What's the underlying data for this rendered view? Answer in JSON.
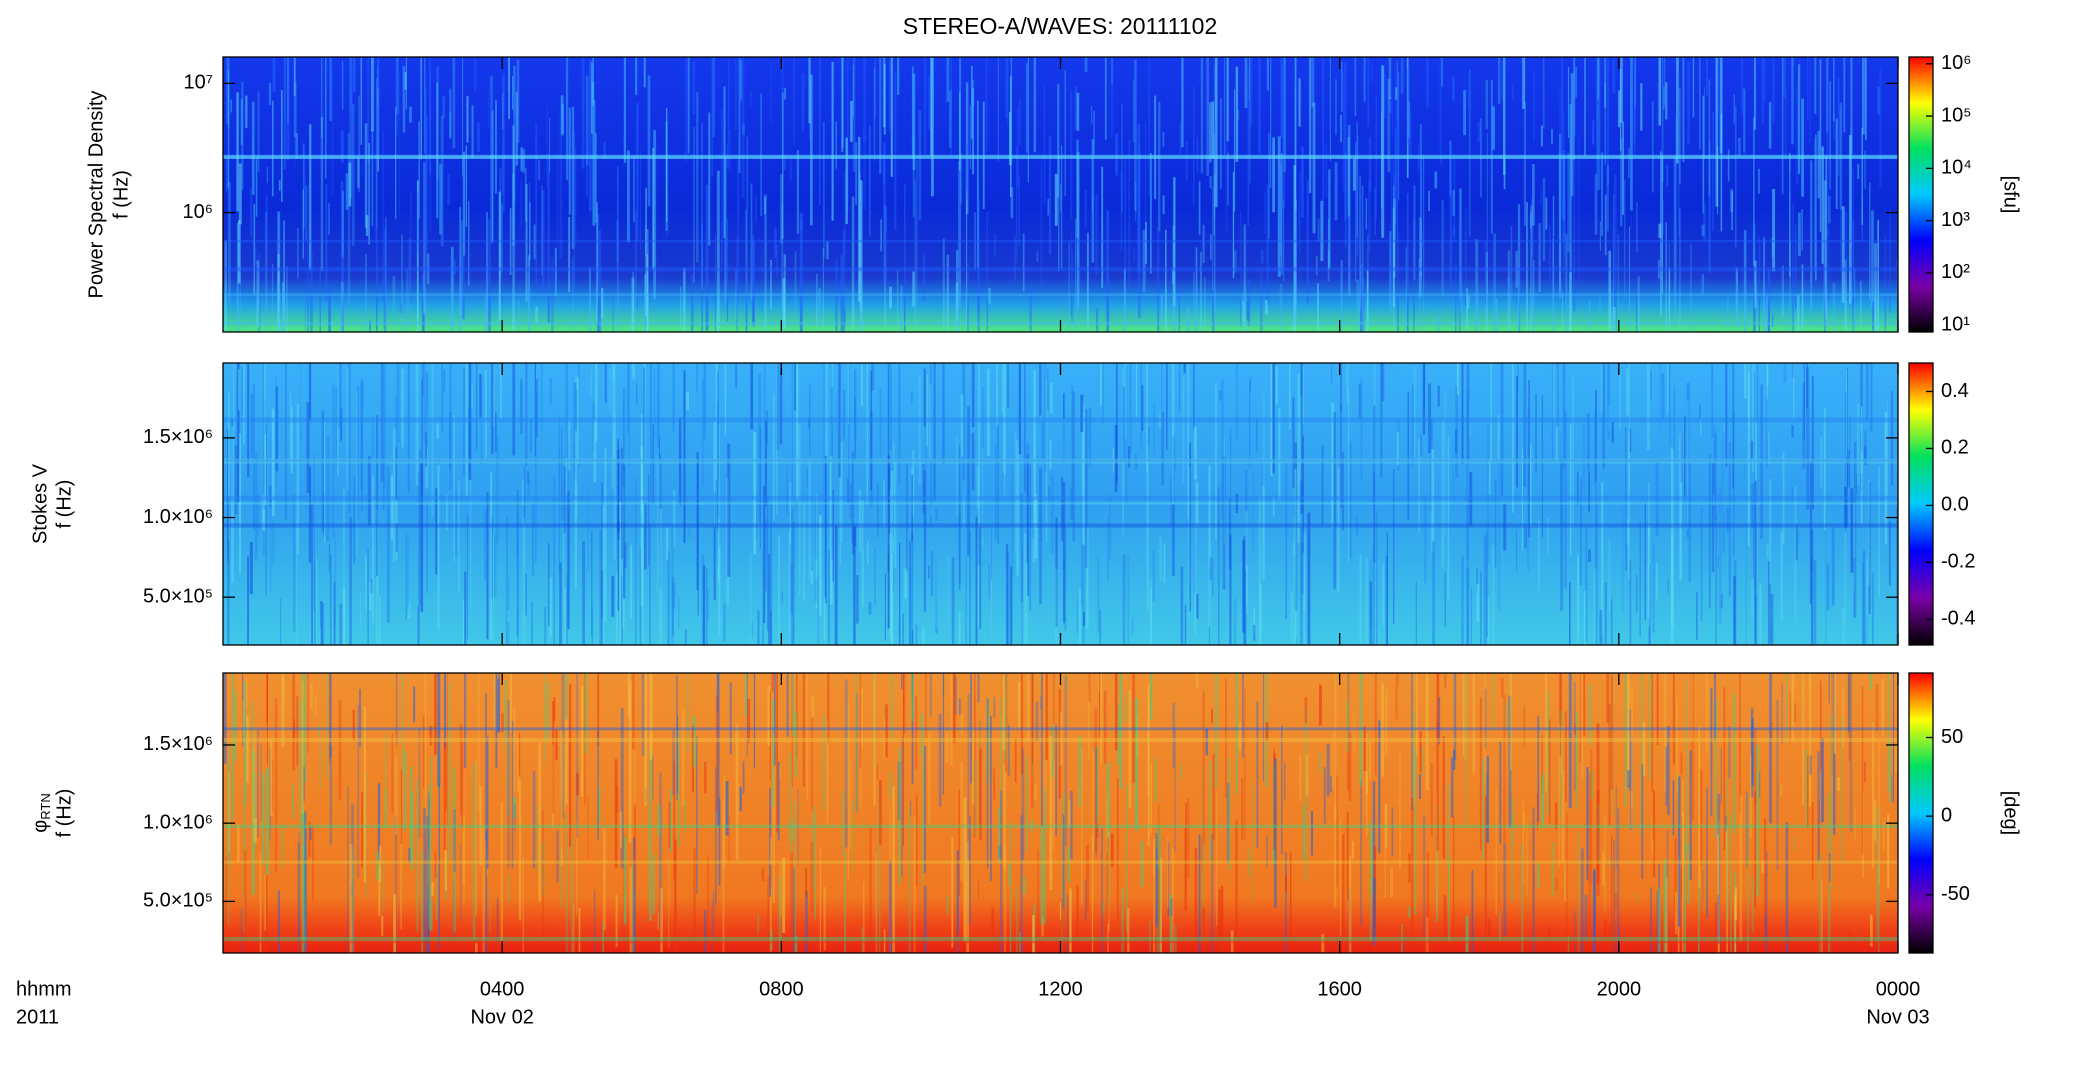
{
  "chart_data": [
    {
      "type": "heatmap",
      "title": "STEREO-A/WAVES: 20111102",
      "ylabel": [
        "Power Spectral Density",
        "f (Hz)"
      ],
      "ylog": true,
      "xlim": [
        0,
        24
      ],
      "ylim": [
        119000,
        16000000
      ],
      "yticks": [
        {
          "value": 1000000,
          "label": "10⁶"
        },
        {
          "value": 10000000,
          "label": "10⁷"
        }
      ],
      "colormap": [
        "#000000",
        "#7a00a8",
        "#0000ff",
        "#00c8ff",
        "#00e060",
        "#ffff00",
        "#ff0000"
      ],
      "colorbar": {
        "log": true,
        "lim": [
          7.4,
          1350000
        ],
        "label": "[sfu]",
        "ticks": [
          {
            "value": 10,
            "label": "10¹"
          },
          {
            "value": 100,
            "label": "10²"
          },
          {
            "value": 1000,
            "label": "10³"
          },
          {
            "value": 10000,
            "label": "10⁴"
          },
          {
            "value": 100000,
            "label": "10⁵"
          },
          {
            "value": 1000000,
            "label": "10⁶"
          }
        ]
      }
    },
    {
      "type": "heatmap",
      "ylabel": [
        "Stokes V",
        "f (Hz)"
      ],
      "ylog": false,
      "xlim": [
        0,
        24
      ],
      "ylim": [
        200000,
        1970000
      ],
      "yticks": [
        {
          "value": 500000,
          "label": "5.0×10⁵"
        },
        {
          "value": 1000000,
          "label": "1.0×10⁶"
        },
        {
          "value": 1500000,
          "label": "1.5×10⁶"
        }
      ],
      "colormap": [
        "#000000",
        "#7a00a8",
        "#0000ff",
        "#00c8ff",
        "#00e060",
        "#ffff00",
        "#ff0000"
      ],
      "colorbar": {
        "log": false,
        "lim": [
          -0.49,
          0.5
        ],
        "ticks": [
          {
            "value": -0.4,
            "label": "-0.4"
          },
          {
            "value": -0.2,
            "label": "-0.2"
          },
          {
            "value": 0,
            "label": "0.0"
          },
          {
            "value": 0.2,
            "label": "0.2"
          },
          {
            "value": 0.4,
            "label": "0.4"
          }
        ]
      }
    },
    {
      "type": "heatmap",
      "ylabel": [
        "φ",
        "f (Hz)"
      ],
      "ylabel_sub": "RTN",
      "ylog": false,
      "xlim": [
        0,
        24
      ],
      "ylim": [
        170000,
        1960000
      ],
      "yticks": [
        {
          "value": 500000,
          "label": "5.0×10⁵"
        },
        {
          "value": 1000000,
          "label": "1.0×10⁶"
        },
        {
          "value": 1500000,
          "label": "1.5×10⁶"
        }
      ],
      "colormap": [
        "#000000",
        "#7a00a8",
        "#0000ff",
        "#00c8ff",
        "#00e060",
        "#ffff00",
        "#ff0000"
      ],
      "colorbar": {
        "log": false,
        "lim": [
          -87,
          91
        ],
        "label": "[deg]",
        "ticks": [
          -50,
          0,
          50
        ]
      },
      "xlabel": [
        "hhmm",
        "2011"
      ],
      "xticks": [
        {
          "value": 4,
          "label": "0400"
        },
        {
          "value": 8,
          "label": "0800"
        },
        {
          "value": 12,
          "label": "1200"
        },
        {
          "value": 16,
          "label": "1600"
        },
        {
          "value": 20,
          "label": "2000"
        },
        {
          "value": 24,
          "label": "0000"
        }
      ],
      "xsublabels": [
        {
          "value": 4,
          "label": "Nov 02"
        },
        {
          "value": 24,
          "label": "Nov 03"
        }
      ]
    }
  ]
}
